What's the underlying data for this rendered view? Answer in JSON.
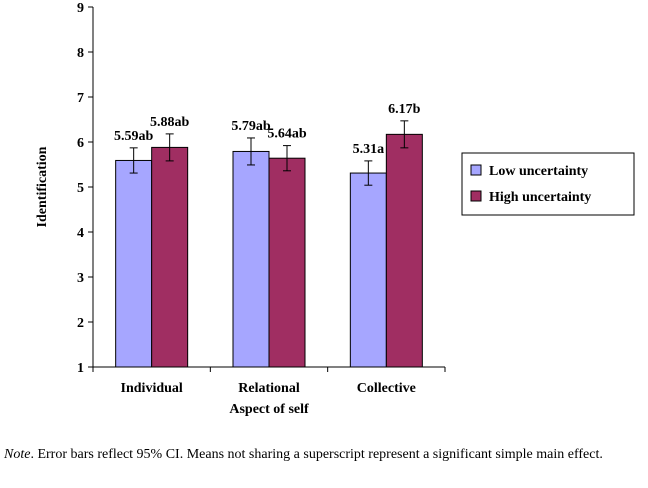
{
  "chart_data": {
    "type": "bar",
    "xlabel": "Aspect of self",
    "ylabel": "Identification",
    "ylim": [
      1,
      9
    ],
    "yticks": [
      1,
      2,
      3,
      4,
      5,
      6,
      7,
      8,
      9
    ],
    "categories": [
      "Individual",
      "Relational",
      "Collective"
    ],
    "series": [
      {
        "name": "Low uncertainty",
        "color": "#a6a6ff",
        "values": [
          5.59,
          5.79,
          5.31
        ],
        "error": [
          0.28,
          0.3,
          0.27
        ],
        "labels": [
          "5.59ab",
          "5.79ab",
          "5.31a"
        ]
      },
      {
        "name": "High uncertainty",
        "color": "#a02e62",
        "values": [
          5.88,
          5.64,
          6.17
        ],
        "error": [
          0.3,
          0.28,
          0.3
        ],
        "labels": [
          "5.88ab",
          "5.64ab",
          "6.17b"
        ]
      }
    ],
    "legend_position": "right",
    "grid": false
  },
  "note": {
    "lead": "Note",
    "text": ". Error bars reflect 95% CI. Means not sharing a superscript represent a significant simple main effect."
  }
}
